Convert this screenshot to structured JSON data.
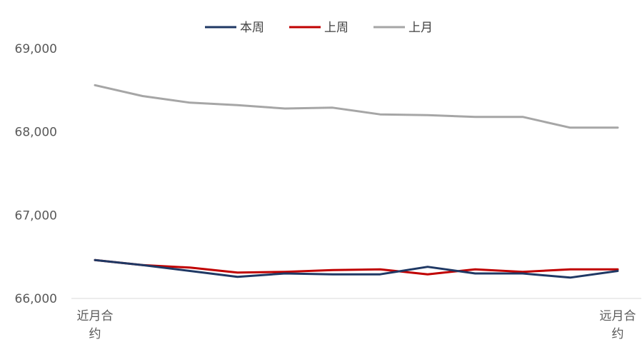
{
  "chart_data": {
    "type": "line",
    "title": "",
    "xlabel": "",
    "ylabel": "",
    "x": [
      "近月合约",
      "",
      "",
      "",
      "",
      "",
      "",
      "",
      "",
      "",
      "",
      "远月合约"
    ],
    "first_category_lines": [
      "近月合",
      "约"
    ],
    "last_category_lines": [
      "远月合",
      "约"
    ],
    "ylim": [
      66000,
      69000
    ],
    "yticks": [
      66000,
      67000,
      68000,
      69000
    ],
    "ytick_labels": [
      "66,000",
      "67,000",
      "68,000",
      "69,000"
    ],
    "grid": false,
    "legend_position": "top-center",
    "series": [
      {
        "name": "本周",
        "color": "#1F3864",
        "values": [
          66460,
          66400,
          66330,
          66260,
          66300,
          66290,
          66290,
          66380,
          66300,
          66300,
          66250,
          66330
        ]
      },
      {
        "name": "上周",
        "color": "#C00000",
        "values": [
          66460,
          66400,
          66370,
          66310,
          66320,
          66340,
          66350,
          66290,
          66350,
          66320,
          66350,
          66350
        ]
      },
      {
        "name": "上月",
        "color": "#A6A6A6",
        "values": [
          68560,
          68430,
          68350,
          68320,
          68280,
          68290,
          68210,
          68200,
          68180,
          68180,
          68050,
          68050
        ]
      }
    ]
  }
}
